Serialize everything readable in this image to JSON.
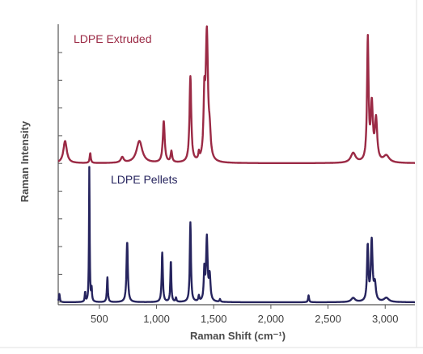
{
  "chart_data": {
    "type": "line",
    "xlabel": "Raman Shift (cm⁻¹)",
    "ylabel": "Raman Intensity",
    "xlim": [
      140,
      3260
    ],
    "xticks": [
      500,
      1000,
      1500,
      2000,
      2500,
      3000
    ],
    "xtick_labels": [
      "500",
      "1,000",
      "1,500",
      "2,000",
      "2,500",
      "3,000"
    ],
    "y_tick_labels_shown": false,
    "grid": false,
    "series": [
      {
        "name": "LDPE Extruded",
        "color": "#9b2a45",
        "baseline": 0.0,
        "peaks": [
          {
            "x": 200,
            "h": 0.16,
            "w": 18
          },
          {
            "x": 420,
            "h": 0.07,
            "w": 6
          },
          {
            "x": 700,
            "h": 0.04,
            "w": 15
          },
          {
            "x": 850,
            "h": 0.16,
            "w": 30
          },
          {
            "x": 1063,
            "h": 0.3,
            "w": 10
          },
          {
            "x": 1130,
            "h": 0.08,
            "w": 8
          },
          {
            "x": 1296,
            "h": 0.62,
            "w": 9
          },
          {
            "x": 1370,
            "h": 0.05,
            "w": 5
          },
          {
            "x": 1418,
            "h": 0.4,
            "w": 8
          },
          {
            "x": 1440,
            "h": 0.92,
            "w": 12
          },
          {
            "x": 1465,
            "h": 0.15,
            "w": 10
          },
          {
            "x": 2720,
            "h": 0.07,
            "w": 25
          },
          {
            "x": 2848,
            "h": 0.88,
            "w": 8
          },
          {
            "x": 2883,
            "h": 0.4,
            "w": 11
          },
          {
            "x": 2920,
            "h": 0.3,
            "w": 12
          },
          {
            "x": 3010,
            "h": 0.05,
            "w": 30
          }
        ]
      },
      {
        "name": "LDPE Pellets",
        "color": "#26245e",
        "baseline": 0.0,
        "peaks": [
          {
            "x": 150,
            "h": 0.06,
            "w": 5
          },
          {
            "x": 375,
            "h": 0.07,
            "w": 4
          },
          {
            "x": 412,
            "h": 0.98,
            "w": 3.5
          },
          {
            "x": 432,
            "h": 0.09,
            "w": 4
          },
          {
            "x": 570,
            "h": 0.18,
            "w": 5
          },
          {
            "x": 743,
            "h": 0.44,
            "w": 7
          },
          {
            "x": 1050,
            "h": 0.36,
            "w": 6
          },
          {
            "x": 1125,
            "h": 0.3,
            "w": 5
          },
          {
            "x": 1170,
            "h": 0.03,
            "w": 5
          },
          {
            "x": 1296,
            "h": 0.58,
            "w": 6
          },
          {
            "x": 1370,
            "h": 0.04,
            "w": 5
          },
          {
            "x": 1418,
            "h": 0.22,
            "w": 6
          },
          {
            "x": 1440,
            "h": 0.46,
            "w": 8
          },
          {
            "x": 1465,
            "h": 0.18,
            "w": 8
          },
          {
            "x": 1555,
            "h": 0.02,
            "w": 5
          },
          {
            "x": 2330,
            "h": 0.05,
            "w": 5
          },
          {
            "x": 2720,
            "h": 0.03,
            "w": 20
          },
          {
            "x": 2847,
            "h": 0.4,
            "w": 7
          },
          {
            "x": 2882,
            "h": 0.44,
            "w": 9
          },
          {
            "x": 2910,
            "h": 0.12,
            "w": 10
          },
          {
            "x": 3010,
            "h": 0.03,
            "w": 25
          }
        ]
      }
    ]
  }
}
